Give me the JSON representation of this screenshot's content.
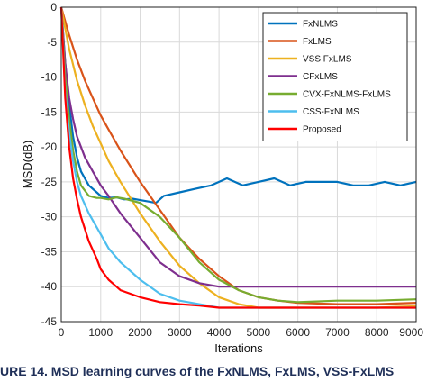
{
  "chart_data": {
    "type": "line",
    "xlabel": "Iterations",
    "ylabel": "MSD(dB)",
    "xlim": [
      0,
      9000
    ],
    "ylim": [
      -45,
      0
    ],
    "xticks": [
      0,
      1000,
      2000,
      3000,
      4000,
      5000,
      6000,
      7000,
      8000,
      9000
    ],
    "yticks": [
      0,
      -5,
      -10,
      -15,
      -20,
      -25,
      -30,
      -35,
      -40,
      -45
    ],
    "grid": true,
    "legend_position": "top-right",
    "series": [
      {
        "name": "FxNLMS",
        "color": "#0072bd",
        "x": [
          0,
          100,
          200,
          300,
          400,
          500,
          700,
          900,
          1000,
          1200,
          1400,
          1600,
          1800,
          2000,
          2200,
          2400,
          2600,
          3000,
          3400,
          3800,
          4200,
          4600,
          5000,
          5400,
          5800,
          6200,
          6600,
          7000,
          7400,
          7800,
          8200,
          8600,
          9000
        ],
        "y": [
          0,
          -8,
          -14,
          -18.5,
          -21.5,
          -23.5,
          -25.5,
          -26.5,
          -27,
          -27.3,
          -27.2,
          -27.5,
          -27.4,
          -27.6,
          -27.8,
          -28,
          -27,
          -26.5,
          -26,
          -25.5,
          -24.5,
          -25.5,
          -25,
          -24.5,
          -25.5,
          -25,
          -25,
          -25,
          -25.5,
          -25.5,
          -25,
          -25.5,
          -25
        ]
      },
      {
        "name": "FxLMS",
        "color": "#d95319",
        "x": [
          0,
          200,
          400,
          600,
          800,
          1000,
          1200,
          1500,
          2000,
          2500,
          3000,
          3500,
          4000,
          4500,
          5000,
          5500,
          6000,
          7000,
          8000,
          9000
        ],
        "y": [
          0,
          -4,
          -7.5,
          -10.5,
          -13,
          -15.5,
          -17.5,
          -20.5,
          -25,
          -29,
          -33,
          -36,
          -38.5,
          -40.5,
          -41.5,
          -42,
          -42.3,
          -42.5,
          -42.5,
          -42.3
        ]
      },
      {
        "name": "VSS FxLMS",
        "color": "#edb120",
        "x": [
          0,
          200,
          400,
          600,
          800,
          1000,
          1200,
          1500,
          2000,
          2500,
          3000,
          3500,
          4000,
          4500,
          5000,
          5500,
          6000,
          7000,
          8000,
          9000
        ],
        "y": [
          0,
          -6,
          -10.5,
          -14,
          -17,
          -19.5,
          -22,
          -25,
          -29.5,
          -33.5,
          -37,
          -39.5,
          -41.5,
          -42.5,
          -43,
          -43,
          -43,
          -43,
          -43,
          -42.8
        ]
      },
      {
        "name": "CFxLMS",
        "color": "#7e2f8e",
        "x": [
          0,
          100,
          200,
          300,
          400,
          600,
          800,
          1000,
          1200,
          1500,
          2000,
          2500,
          3000,
          3500,
          4000,
          4500,
          5000,
          6000,
          7000,
          8000,
          9000
        ],
        "y": [
          0,
          -8,
          -13,
          -16,
          -18.5,
          -21.5,
          -23.5,
          -25.5,
          -27,
          -29.5,
          -33,
          -36.5,
          -38.5,
          -39.5,
          -40,
          -40,
          -40,
          -40,
          -40,
          -40,
          -40
        ]
      },
      {
        "name": "CVX-FxNLMS-FxLMS",
        "color": "#77ac30",
        "x": [
          0,
          100,
          200,
          300,
          400,
          500,
          700,
          900,
          1000,
          1200,
          1400,
          1600,
          2000,
          2500,
          3000,
          3500,
          4000,
          4500,
          5000,
          5500,
          6000,
          7000,
          8000,
          9000
        ],
        "y": [
          0,
          -10,
          -16,
          -20.5,
          -23.5,
          -25.5,
          -27,
          -27.3,
          -27.3,
          -27.5,
          -27.2,
          -27.4,
          -28,
          -30,
          -33,
          -36.5,
          -39,
          -40.5,
          -41.5,
          -42,
          -42.2,
          -42,
          -42,
          -41.8
        ]
      },
      {
        "name": "CSS-FxNLMS",
        "color": "#4dbeee",
        "x": [
          0,
          100,
          200,
          300,
          400,
          500,
          700,
          900,
          1000,
          1200,
          1500,
          2000,
          2500,
          3000,
          3500,
          4000,
          4500,
          5000,
          6000,
          7000,
          8000,
          9000
        ],
        "y": [
          0,
          -12,
          -18,
          -22,
          -25,
          -27,
          -29.5,
          -31.5,
          -32.5,
          -34.5,
          -36.5,
          -39,
          -41,
          -42,
          -42.5,
          -43,
          -43,
          -43,
          -43,
          -43,
          -43,
          -43
        ]
      },
      {
        "name": "Proposed",
        "color": "#ff0000",
        "x": [
          0,
          100,
          200,
          300,
          400,
          500,
          700,
          900,
          1000,
          1200,
          1500,
          2000,
          2500,
          3000,
          3500,
          4000,
          4500,
          5000,
          6000,
          7000,
          8000,
          9000
        ],
        "y": [
          0,
          -13,
          -20,
          -24.5,
          -27.5,
          -30,
          -33.5,
          -36,
          -37.5,
          -39,
          -40.5,
          -41.5,
          -42.2,
          -42.5,
          -42.7,
          -43,
          -43,
          -43,
          -43,
          -43,
          -43,
          -43
        ]
      }
    ]
  },
  "caption": "URE 14. MSD learning curves of the FxNLMS, FxLMS, VSS-FxLMS"
}
